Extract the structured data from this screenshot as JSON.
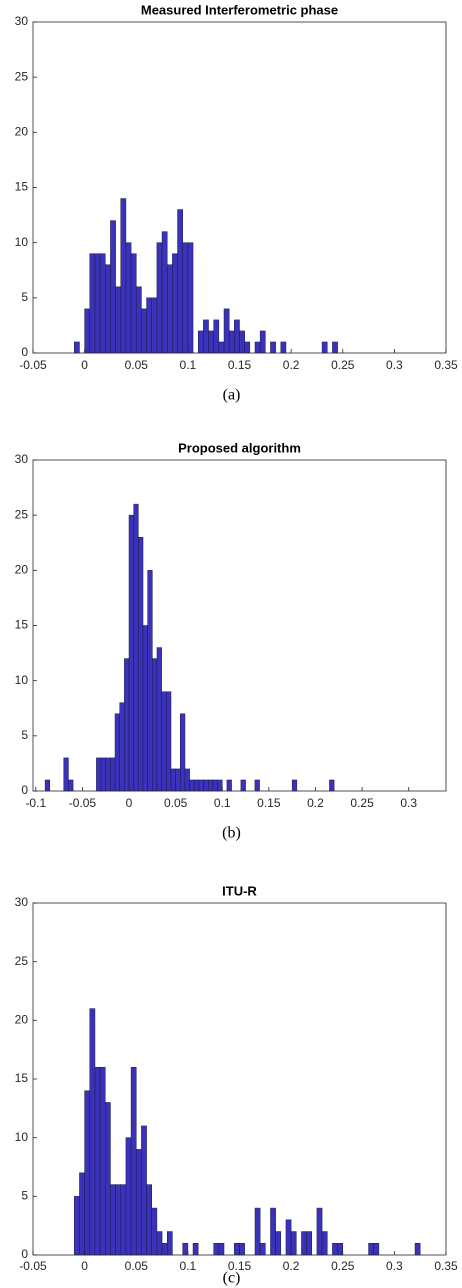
{
  "chart_data": [
    {
      "type": "histogram",
      "title": "Measured Interferometric phase",
      "caption": "(a)",
      "color": "#3a32b8",
      "bins": [
        -0.01,
        -0.005,
        0,
        0.005,
        0.01,
        0.015,
        0.02,
        0.025,
        0.03,
        0.035,
        0.04,
        0.045,
        0.05,
        0.055,
        0.06,
        0.065,
        0.07,
        0.075,
        0.08,
        0.085,
        0.09,
        0.095,
        0.1,
        0.105,
        0.11,
        0.115,
        0.12,
        0.125,
        0.13,
        0.135,
        0.14,
        0.145,
        0.15,
        0.155,
        0.16,
        0.165,
        0.17,
        0.175,
        0.18,
        0.185,
        0.19,
        0.195,
        0.2,
        0.205,
        0.21,
        0.215,
        0.22,
        0.225,
        0.23,
        0.235,
        0.24,
        0.245
      ],
      "values": [
        1,
        0,
        4,
        9,
        9,
        9,
        8,
        12,
        6,
        14,
        10,
        9,
        6,
        4,
        5,
        5,
        10,
        11,
        8,
        9,
        13,
        10,
        10,
        0,
        2,
        3,
        2,
        3,
        1,
        4,
        2,
        3,
        2,
        1,
        0,
        1,
        2,
        0,
        1,
        0,
        1,
        0,
        0,
        0,
        0,
        0,
        0,
        0,
        1,
        0,
        1
      ],
      "xlim": [
        -0.05,
        0.35
      ],
      "xticks": [
        -0.05,
        0,
        0.05,
        0.1,
        0.15,
        0.2,
        0.25,
        0.3,
        0.35
      ],
      "ylim": [
        0,
        30
      ],
      "yticks": [
        0,
        5,
        10,
        15,
        20,
        25,
        30
      ]
    },
    {
      "type": "histogram",
      "title": "Proposed algorithm",
      "caption": "(b)",
      "color": "#3a32b8",
      "bins": [
        -0.09,
        -0.085,
        -0.08,
        -0.075,
        -0.07,
        -0.065,
        -0.06,
        -0.055,
        -0.05,
        -0.045,
        -0.04,
        -0.035,
        -0.03,
        -0.025,
        -0.02,
        -0.015,
        -0.01,
        -0.005,
        0,
        0.005,
        0.01,
        0.015,
        0.02,
        0.025,
        0.03,
        0.035,
        0.04,
        0.045,
        0.05,
        0.055,
        0.06,
        0.065,
        0.07,
        0.075,
        0.08,
        0.085,
        0.09,
        0.095,
        0.1,
        0.105,
        0.11,
        0.115,
        0.12,
        0.125,
        0.13,
        0.135,
        0.14,
        0.145,
        0.15,
        0.155,
        0.16,
        0.165,
        0.17,
        0.175,
        0.18,
        0.185,
        0.19,
        0.195,
        0.2,
        0.205,
        0.21,
        0.215,
        0.22
      ],
      "values": [
        1,
        0,
        0,
        0,
        3,
        1,
        0,
        0,
        0,
        0,
        0,
        3,
        3,
        3,
        3,
        7,
        8,
        12,
        25,
        26,
        23,
        15,
        20,
        12,
        13,
        9,
        9,
        2,
        2,
        7,
        2,
        1,
        1,
        1,
        1,
        1,
        1,
        1,
        0,
        1,
        0,
        0,
        1,
        0,
        0,
        1,
        0,
        0,
        0,
        0,
        0,
        0,
        0,
        1,
        0,
        0,
        0,
        0,
        0,
        0,
        0,
        1
      ],
      "xlim": [
        -0.103,
        0.34
      ],
      "xticks": [
        -0.1,
        -0.05,
        0,
        0.05,
        0.1,
        0.15,
        0.2,
        0.25,
        0.3
      ],
      "ylim": [
        0,
        30
      ],
      "yticks": [
        0,
        5,
        10,
        15,
        20,
        25,
        30
      ]
    },
    {
      "type": "histogram",
      "title": "ITU-R",
      "caption": "(c)",
      "color": "#3a32b8",
      "bins": [
        -0.01,
        -0.005,
        0,
        0.005,
        0.01,
        0.015,
        0.02,
        0.025,
        0.03,
        0.035,
        0.04,
        0.045,
        0.05,
        0.055,
        0.06,
        0.065,
        0.07,
        0.075,
        0.08,
        0.085,
        0.09,
        0.095,
        0.1,
        0.105,
        0.11,
        0.115,
        0.12,
        0.125,
        0.13,
        0.135,
        0.14,
        0.145,
        0.15,
        0.155,
        0.16,
        0.165,
        0.17,
        0.175,
        0.18,
        0.185,
        0.19,
        0.195,
        0.2,
        0.205,
        0.21,
        0.215,
        0.22,
        0.225,
        0.23,
        0.235,
        0.24,
        0.245,
        0.25,
        0.255,
        0.26,
        0.265,
        0.27,
        0.275,
        0.28,
        0.285,
        0.29,
        0.295,
        0.3,
        0.305,
        0.31,
        0.315,
        0.32,
        0.325
      ],
      "values": [
        5,
        7,
        14,
        21,
        16,
        16,
        13,
        6,
        6,
        6,
        10,
        16,
        9,
        11,
        6,
        4,
        2,
        1,
        2,
        0,
        0,
        1,
        0,
        1,
        0,
        0,
        0,
        1,
        1,
        0,
        0,
        1,
        1,
        0,
        0,
        4,
        1,
        0,
        4,
        2,
        0,
        3,
        2,
        0,
        2,
        2,
        0,
        4,
        2,
        0,
        1,
        1,
        0,
        0,
        0,
        0,
        0,
        1,
        1,
        0,
        0,
        0,
        0,
        0,
        0,
        0,
        1
      ],
      "xlim": [
        -0.05,
        0.35
      ],
      "xticks": [
        -0.05,
        0,
        0.05,
        0.1,
        0.15,
        0.2,
        0.25,
        0.3,
        0.35
      ],
      "ylim": [
        0,
        30
      ],
      "yticks": [
        0,
        5,
        10,
        15,
        20,
        25,
        30
      ]
    }
  ]
}
